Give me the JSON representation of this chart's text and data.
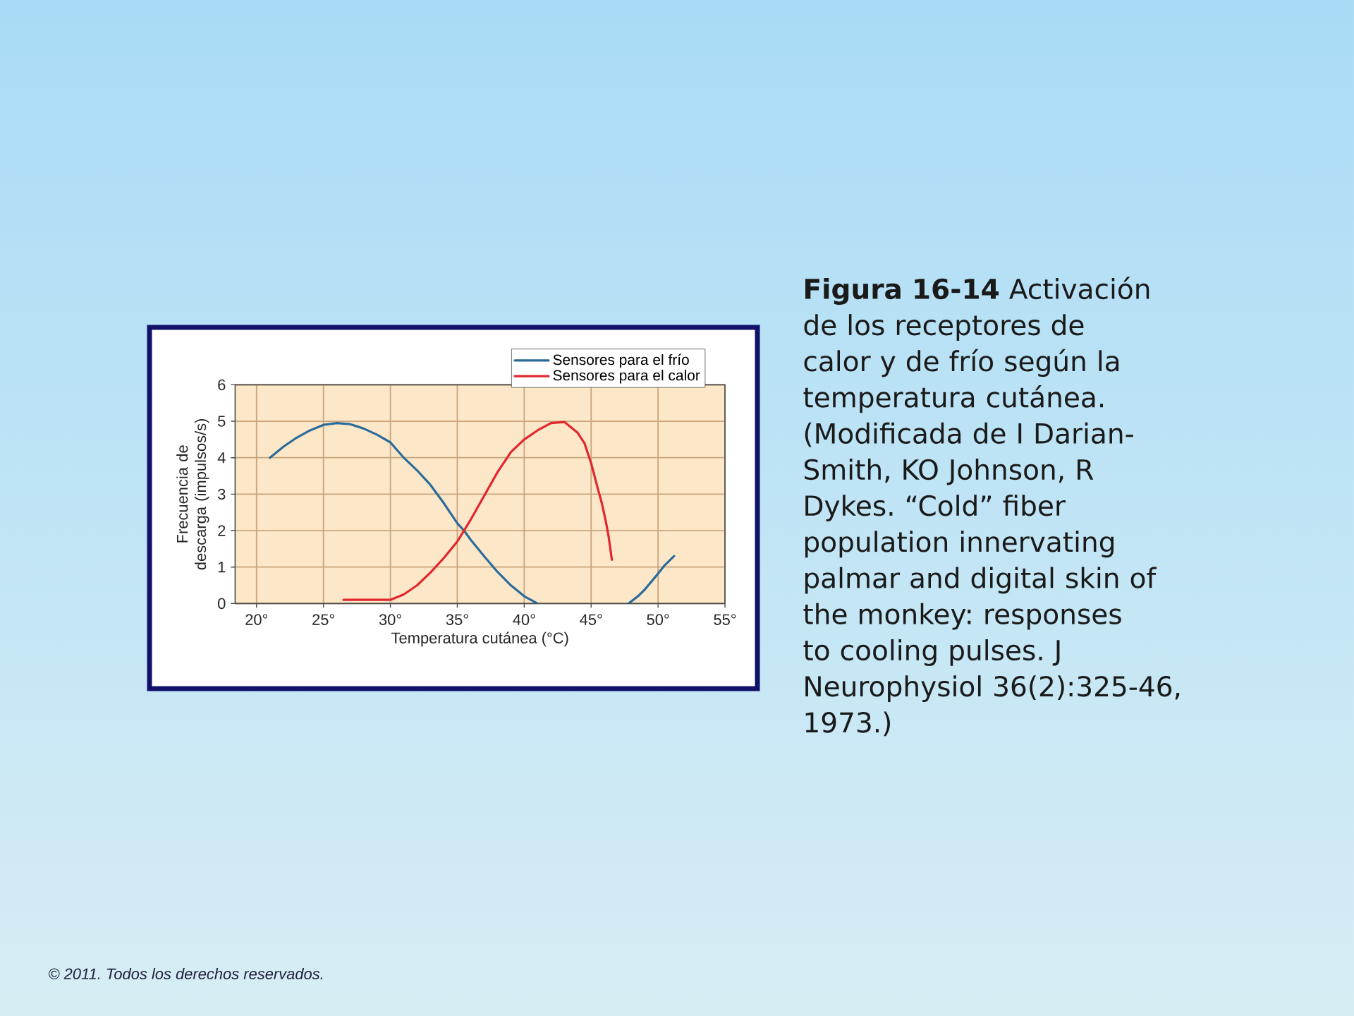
{
  "chart_data": {
    "type": "line",
    "title": "**Figura 16-14** Activación de los receptores de calor y de frío según la temperatura cutánea. (Modificada de I Darian-Smith, KO Johnson, R Dykes. “Cold” fiber population innervating palmar and digital skin of the monkey: responses to cooling pulses. J Neurophysiol 36(2):325-46, 1973.)",
    "xlabel": "Temperatura cutánea (°C)",
    "ylabel": "Frecuencia de descarga (impulsos/s)",
    "annotations": [
      "© 2011. Todos los derechos reservados."
    ],
    "xlim": [
      18.4,
      55
    ],
    "ylim": [
      0,
      6
    ],
    "xticks": [
      {
        "value": 20,
        "label": "20°"
      },
      {
        "value": 25,
        "label": "25°"
      },
      {
        "value": 30,
        "label": "30°"
      },
      {
        "value": 35,
        "label": "35°"
      },
      {
        "value": 40,
        "label": "40°"
      },
      {
        "value": 45,
        "label": "45°"
      },
      {
        "value": 50,
        "label": "50°"
      },
      {
        "value": 55,
        "label": "55°"
      }
    ],
    "yticks": [
      0,
      1,
      2,
      3,
      4,
      5,
      6
    ],
    "grid": true,
    "legend": "top right",
    "series": [
      {
        "name": "Sensores para el frío",
        "color": "#2b6b9b",
        "x": [
          21,
          22,
          23,
          24,
          25,
          26,
          27,
          28,
          29,
          30,
          31,
          32,
          33,
          34,
          35,
          35.5,
          36,
          37,
          38,
          39,
          40,
          41,
          44,
          47.8,
          48.5,
          49,
          49.5,
          50,
          50.5,
          51.2
        ],
        "values": [
          4.0,
          4.3,
          4.55,
          4.75,
          4.9,
          4.95,
          4.92,
          4.8,
          4.63,
          4.42,
          4.0,
          3.65,
          3.25,
          2.75,
          2.2,
          2.0,
          1.75,
          1.3,
          0.87,
          0.5,
          0.2,
          0.0,
          null,
          0.0,
          0.2,
          0.38,
          0.6,
          0.82,
          1.05,
          1.3
        ]
      },
      {
        "name": "Sensores para el calor",
        "color": "#e3262e",
        "x": [
          26.5,
          28,
          30,
          31,
          32,
          33,
          34,
          35,
          36,
          37,
          38,
          39,
          40,
          41,
          42,
          43,
          44,
          44.5,
          45,
          45.5,
          45.8,
          46.1,
          46.3,
          46.55
        ],
        "values": [
          0.1,
          0.1,
          0.1,
          0.25,
          0.5,
          0.85,
          1.25,
          1.7,
          2.3,
          2.95,
          3.6,
          4.15,
          4.5,
          4.75,
          4.95,
          4.98,
          4.68,
          4.4,
          3.85,
          3.15,
          2.75,
          2.25,
          1.85,
          1.2
        ]
      }
    ]
  }
}
